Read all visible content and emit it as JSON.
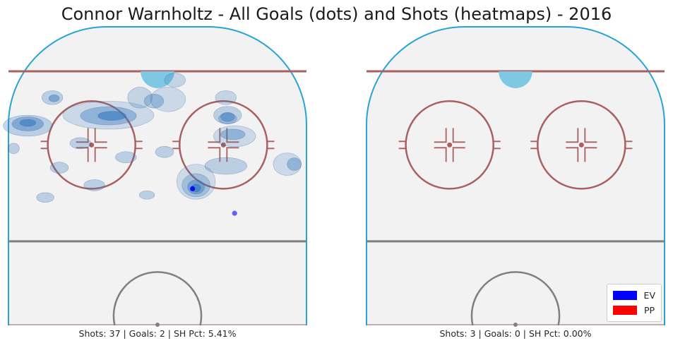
{
  "title": "Connor Warnholtz - All Goals (dots) and Shots (heatmaps) - 2016",
  "colors": {
    "ice": "#f2f2f2",
    "boards": "#29a3d6",
    "goal_line": "#a86060",
    "blue_line": "#808080",
    "faceoff": "#a86060",
    "crease": "#7ec8e3",
    "heat_fill": "#3a7cc0",
    "heat_line": "#1f4f86"
  },
  "chart_data": [
    {
      "type": "scatter",
      "panel": "left",
      "caption": "Shots: 37 | Goals: 2 | SH Pct: 5.41%",
      "goals": [
        {
          "x": 10,
          "y": 39,
          "strength": "EV"
        },
        {
          "x": 22,
          "y": 32,
          "strength": "EV"
        }
      ],
      "shot_heatmap": {
        "kind": "density",
        "hotspots": [
          {
            "x": -6,
            "y": 29,
            "level": 3
          },
          {
            "x": -37,
            "y": 28,
            "level": 3
          },
          {
            "x": 11,
            "y": 10,
            "level": 4
          }
        ]
      }
    },
    {
      "type": "scatter",
      "panel": "right",
      "caption": "Shots: 3 | Goals: 0 | SH Pct: 0.00%",
      "goals": [],
      "shot_heatmap": {
        "kind": "density",
        "hotspots": []
      }
    }
  ],
  "legend": {
    "position": "bottom-right",
    "items": [
      {
        "label": "EV",
        "color": "#0000ff"
      },
      {
        "label": "PP",
        "color": "#ff0000"
      }
    ]
  }
}
